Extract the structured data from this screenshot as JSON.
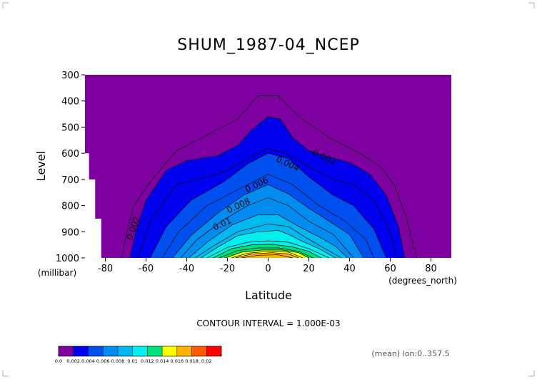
{
  "chart_data": {
    "type": "heatmap",
    "subtype": "filled-contour",
    "title": "SHUM_1987-04_NCEP",
    "xlabel": "Latitude",
    "ylabel": "Level",
    "x_units": "(degrees_north)",
    "y_units": "(millibar)",
    "xlim": [
      -90,
      90
    ],
    "ylim": [
      1000,
      300
    ],
    "x_ticks": [
      -80,
      -60,
      -40,
      -20,
      0,
      20,
      40,
      60,
      80
    ],
    "y_ticks": [
      300,
      400,
      500,
      600,
      700,
      800,
      900,
      1000
    ],
    "contour_interval_text": "CONTOUR INTERVAL = 1.000E-03",
    "footnote": "(mean) lon:0..357.5",
    "contour_labels": [
      {
        "text": "0.002",
        "lat": -65,
        "lev": 890
      },
      {
        "text": "0.002",
        "lat": 27,
        "lev": 625
      },
      {
        "text": "0.004",
        "lat": 9,
        "lev": 650
      },
      {
        "text": "0.006",
        "lat": -5,
        "lev": 730
      },
      {
        "text": "0.008",
        "lat": -14,
        "lev": 810
      },
      {
        "text": "0.01",
        "lat": -22,
        "lev": 880
      }
    ],
    "levels": [
      0.0,
      0.002,
      0.004,
      0.006,
      0.008,
      0.01,
      0.012,
      0.014,
      0.016,
      0.018,
      0.02
    ],
    "level_labels": [
      "0.0",
      "0.002",
      "0.004",
      "0.006",
      "0.008",
      "0.01",
      "0.012",
      "0.014",
      "0.016",
      "0.018",
      "0.02"
    ],
    "colors": [
      "#7f00a0",
      "#0000f0",
      "#0050f0",
      "#008cf0",
      "#00b9f0",
      "#00f0f0",
      "#00e07a",
      "#ffff00",
      "#ffb400",
      "#ff5a00",
      "#ff0000"
    ],
    "contour_outline_color": "#000000",
    "missing_color": "#ffffff",
    "missing_region": [
      {
        "lat": -90,
        "lev_top": 600
      },
      {
        "lat": -88,
        "lev_top": 700
      },
      {
        "lat": -85,
        "lev_top": 850
      }
    ],
    "contours": [
      {
        "value": 0.001,
        "filled": false,
        "points": [
          [
            -72,
            1000
          ],
          [
            -70,
            920
          ],
          [
            -66,
            800
          ],
          [
            -58,
            710
          ],
          [
            -45,
            590
          ],
          [
            -30,
            530
          ],
          [
            -15,
            470
          ],
          [
            -5,
            380
          ],
          [
            5,
            380
          ],
          [
            15,
            460
          ],
          [
            30,
            540
          ],
          [
            45,
            600
          ],
          [
            55,
            650
          ],
          [
            62,
            720
          ],
          [
            68,
            850
          ],
          [
            73,
            1000
          ]
        ]
      },
      {
        "value": 0.002,
        "filled": true,
        "points": [
          [
            -68,
            1000
          ],
          [
            -65,
            900
          ],
          [
            -60,
            780
          ],
          [
            -50,
            665
          ],
          [
            -40,
            628
          ],
          [
            -25,
            610
          ],
          [
            -15,
            570
          ],
          [
            -8,
            510
          ],
          [
            0,
            460
          ],
          [
            6,
            470
          ],
          [
            12,
            540
          ],
          [
            20,
            590
          ],
          [
            30,
            615
          ],
          [
            40,
            635
          ],
          [
            50,
            680
          ],
          [
            58,
            760
          ],
          [
            64,
            880
          ],
          [
            67,
            1000
          ]
        ]
      },
      {
        "value": 0.003,
        "filled": false,
        "points": [
          [
            -64,
            1000
          ],
          [
            -58,
            860
          ],
          [
            -45,
            720
          ],
          [
            -30,
            690
          ],
          [
            -20,
            665
          ],
          [
            -10,
            620
          ],
          [
            0,
            580
          ],
          [
            10,
            605
          ],
          [
            22,
            660
          ],
          [
            32,
            700
          ],
          [
            42,
            720
          ],
          [
            52,
            780
          ],
          [
            60,
            900
          ],
          [
            63,
            1000
          ]
        ]
      },
      {
        "value": 0.004,
        "filled": true,
        "points": [
          [
            -58,
            1000
          ],
          [
            -50,
            880
          ],
          [
            -38,
            780
          ],
          [
            -22,
            710
          ],
          [
            -10,
            640
          ],
          [
            0,
            600
          ],
          [
            10,
            620
          ],
          [
            20,
            690
          ],
          [
            32,
            760
          ],
          [
            42,
            800
          ],
          [
            52,
            890
          ],
          [
            58,
            1000
          ]
        ]
      },
      {
        "value": 0.005,
        "filled": false,
        "points": [
          [
            -52,
            1000
          ],
          [
            -44,
            900
          ],
          [
            -30,
            800
          ],
          [
            -15,
            740
          ],
          [
            0,
            680
          ],
          [
            12,
            720
          ],
          [
            25,
            800
          ],
          [
            38,
            860
          ],
          [
            48,
            930
          ],
          [
            52,
            1000
          ]
        ]
      },
      {
        "value": 0.006,
        "filled": true,
        "points": [
          [
            -47,
            1000
          ],
          [
            -38,
            915
          ],
          [
            -25,
            830
          ],
          [
            -12,
            760
          ],
          [
            0,
            720
          ],
          [
            10,
            755
          ],
          [
            20,
            810
          ],
          [
            30,
            860
          ],
          [
            40,
            910
          ],
          [
            47,
            1000
          ]
        ]
      },
      {
        "value": 0.007,
        "filled": false,
        "points": [
          [
            -43,
            1000
          ],
          [
            -35,
            930
          ],
          [
            -22,
            855
          ],
          [
            -10,
            800
          ],
          [
            0,
            770
          ],
          [
            10,
            800
          ],
          [
            20,
            860
          ],
          [
            32,
            910
          ],
          [
            42,
            1000
          ]
        ]
      },
      {
        "value": 0.008,
        "filled": true,
        "points": [
          [
            -39,
            1000
          ],
          [
            -30,
            940
          ],
          [
            -18,
            875
          ],
          [
            -5,
            835
          ],
          [
            5,
            835
          ],
          [
            15,
            880
          ],
          [
            25,
            920
          ],
          [
            33,
            955
          ],
          [
            39,
            1000
          ]
        ]
      },
      {
        "value": 0.009,
        "filled": false,
        "points": [
          [
            -36,
            1000
          ],
          [
            -27,
            955
          ],
          [
            -15,
            900
          ],
          [
            0,
            870
          ],
          [
            10,
            880
          ],
          [
            18,
            920
          ],
          [
            28,
            965
          ],
          [
            36,
            1000
          ]
        ]
      },
      {
        "value": 0.01,
        "filled": true,
        "points": [
          [
            -33,
            1000
          ],
          [
            -25,
            960
          ],
          [
            -15,
            915
          ],
          [
            -5,
            900
          ],
          [
            5,
            895
          ],
          [
            10,
            910
          ],
          [
            15,
            930
          ],
          [
            25,
            965
          ],
          [
            33,
            1000
          ]
        ]
      },
      {
        "value": 0.011,
        "filled": false,
        "points": [
          [
            -30,
            1000
          ],
          [
            -20,
            960
          ],
          [
            -10,
            940
          ],
          [
            0,
            935
          ],
          [
            10,
            940
          ],
          [
            20,
            965
          ],
          [
            30,
            1000
          ]
        ]
      },
      {
        "value": 0.012,
        "filled": true,
        "points": [
          [
            -27,
            1000
          ],
          [
            -18,
            965
          ],
          [
            -8,
            950
          ],
          [
            2,
            948
          ],
          [
            12,
            958
          ],
          [
            20,
            975
          ],
          [
            26,
            1000
          ]
        ]
      },
      {
        "value": 0.013,
        "filled": false,
        "points": [
          [
            -24,
            1000
          ],
          [
            -15,
            972
          ],
          [
            -5,
            962
          ],
          [
            5,
            962
          ],
          [
            15,
            975
          ],
          [
            22,
            1000
          ]
        ]
      },
      {
        "value": 0.014,
        "filled": true,
        "points": [
          [
            -21,
            1000
          ],
          [
            -13,
            978
          ],
          [
            -3,
            970
          ],
          [
            7,
            970
          ],
          [
            15,
            980
          ],
          [
            20,
            1000
          ]
        ]
      },
      {
        "value": 0.015,
        "filled": false,
        "points": [
          [
            -18,
            1000
          ],
          [
            -10,
            982
          ],
          [
            0,
            975
          ],
          [
            10,
            978
          ],
          [
            17,
            1000
          ]
        ]
      },
      {
        "value": 0.016,
        "filled": true,
        "points": [
          [
            -16,
            1000
          ],
          [
            -8,
            985
          ],
          [
            2,
            980
          ],
          [
            10,
            985
          ],
          [
            15,
            1000
          ]
        ]
      },
      {
        "value": 0.017,
        "filled": false,
        "points": [
          [
            -13,
            1000
          ],
          [
            -5,
            990
          ],
          [
            5,
            988
          ],
          [
            12,
            1000
          ]
        ]
      }
    ]
  }
}
